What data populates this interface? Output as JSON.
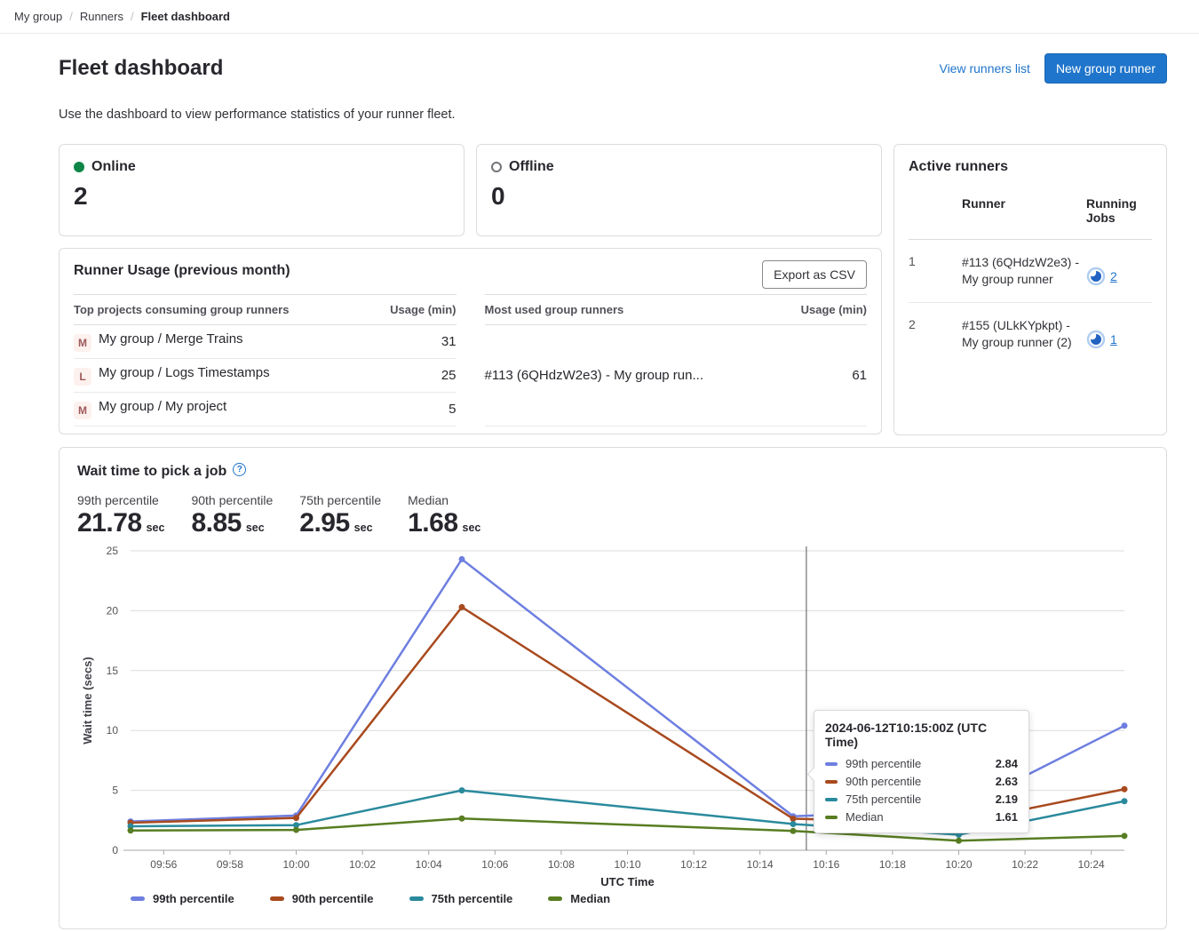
{
  "breadcrumb": {
    "items": [
      "My group",
      "Runners",
      "Fleet dashboard"
    ]
  },
  "header": {
    "title": "Fleet dashboard",
    "view_runners_link": "View runners list",
    "new_runner_button": "New group runner",
    "description": "Use the dashboard to view performance statistics of your runner fleet."
  },
  "colors": {
    "accent_blue": "#1f75cb",
    "online_green": "#108548"
  },
  "status_cards": {
    "online": {
      "label": "Online",
      "value": "2"
    },
    "offline": {
      "label": "Offline",
      "value": "0"
    }
  },
  "active_runners": {
    "title": "Active runners",
    "columns": {
      "runner": "Runner",
      "running_jobs": "Running Jobs"
    },
    "rows": [
      {
        "index": "1",
        "runner": "#113 (6QHdzW2e3) - My group runner",
        "jobs": "2"
      },
      {
        "index": "2",
        "runner": "#155 (ULkKYpkpt) - My group runner (2)",
        "jobs": "1"
      }
    ]
  },
  "runner_usage": {
    "title": "Runner Usage (previous month)",
    "export_button": "Export as CSV",
    "top_projects": {
      "col_name": "Top projects consuming group runners",
      "col_usage": "Usage (min)",
      "rows": [
        {
          "avatar": "M",
          "name": "My group / Merge Trains",
          "usage": "31"
        },
        {
          "avatar": "L",
          "name": "My group / Logs Timestamps",
          "usage": "25"
        },
        {
          "avatar": "M",
          "name": "My group / My project",
          "usage": "5"
        }
      ]
    },
    "most_used": {
      "col_name": "Most used group runners",
      "col_usage": "Usage (min)",
      "rows": [
        {
          "name": "#113 (6QHdzW2e3) - My group run...",
          "usage": "61"
        }
      ]
    }
  },
  "wait_time": {
    "title": "Wait time to pick a job",
    "stats": [
      {
        "label": "99th percentile",
        "value": "21.78",
        "unit": "sec"
      },
      {
        "label": "90th percentile",
        "value": "8.85",
        "unit": "sec"
      },
      {
        "label": "75th percentile",
        "value": "2.95",
        "unit": "sec"
      },
      {
        "label": "Median",
        "value": "1.68",
        "unit": "sec"
      }
    ]
  },
  "chart_data": {
    "type": "line",
    "title": "Wait time to pick a job",
    "xlabel": "UTC Time",
    "ylabel": "Wait time (secs)",
    "ylim": [
      0,
      25
    ],
    "y_ticks": [
      0,
      5,
      10,
      15,
      20,
      25
    ],
    "grid": "horizontal",
    "legend_position": "bottom-left",
    "x": [
      "09:55",
      "10:00",
      "10:05",
      "10:15",
      "10:20",
      "10:25"
    ],
    "x_minutes": [
      595,
      600,
      605,
      615,
      620,
      625
    ],
    "x_tick_minutes": [
      596,
      598,
      600,
      602,
      604,
      606,
      608,
      610,
      612,
      614,
      616,
      618,
      620,
      622,
      624
    ],
    "x_tick_labels": [
      "09:56",
      "09:58",
      "10:00",
      "10:02",
      "10:04",
      "10:06",
      "10:08",
      "10:10",
      "10:12",
      "10:14",
      "10:16",
      "10:18",
      "10:20",
      "10:22",
      "10:24"
    ],
    "series": [
      {
        "name": "99th percentile",
        "color": "#6e7fe0",
        "values": [
          2.4,
          2.9,
          24.3,
          2.84,
          3.4,
          10.4
        ]
      },
      {
        "name": "90th percentile",
        "color": "#a84a1e",
        "values": [
          2.3,
          2.7,
          20.3,
          2.63,
          2.3,
          5.1
        ]
      },
      {
        "name": "75th percentile",
        "color": "#2a8a9d",
        "values": [
          2.0,
          2.1,
          5.0,
          2.19,
          1.3,
          4.1
        ]
      },
      {
        "name": "Median",
        "color": "#587d22",
        "values": [
          1.65,
          1.7,
          2.65,
          1.61,
          0.8,
          1.2
        ]
      }
    ],
    "axis_pointer": {
      "minute": 615.4
    },
    "tooltip": {
      "title": "2024-06-12T10:15:00Z (UTC Time)",
      "rows": [
        {
          "label": "99th percentile",
          "value": "2.84"
        },
        {
          "label": "90th percentile",
          "value": "2.63"
        },
        {
          "label": "75th percentile",
          "value": "2.19"
        },
        {
          "label": "Median",
          "value": "1.61"
        }
      ]
    }
  }
}
